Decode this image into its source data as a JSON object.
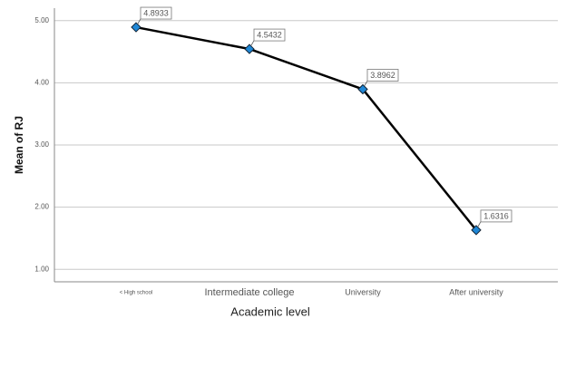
{
  "chart_data": {
    "type": "line",
    "x_label": "Academic level",
    "y_label": "Mean of RJ",
    "categories": [
      "< High school",
      "Intermediate college",
      "University",
      "After university"
    ],
    "series": [
      {
        "name": "Mean of RJ",
        "color": "#000000",
        "marker_color": "#1f87d6",
        "values": [
          4.8933,
          4.5432,
          3.8962,
          1.6316
        ]
      }
    ],
    "ylim": [
      0.8,
      5.2
    ],
    "yticks": [
      {
        "value": 1,
        "label": "1.00"
      },
      {
        "value": 2,
        "label": "2.00"
      },
      {
        "value": 3,
        "label": "3.00"
      },
      {
        "value": 4,
        "label": "4.00"
      },
      {
        "value": 5,
        "label": "5.00"
      }
    ],
    "grid": true
  }
}
